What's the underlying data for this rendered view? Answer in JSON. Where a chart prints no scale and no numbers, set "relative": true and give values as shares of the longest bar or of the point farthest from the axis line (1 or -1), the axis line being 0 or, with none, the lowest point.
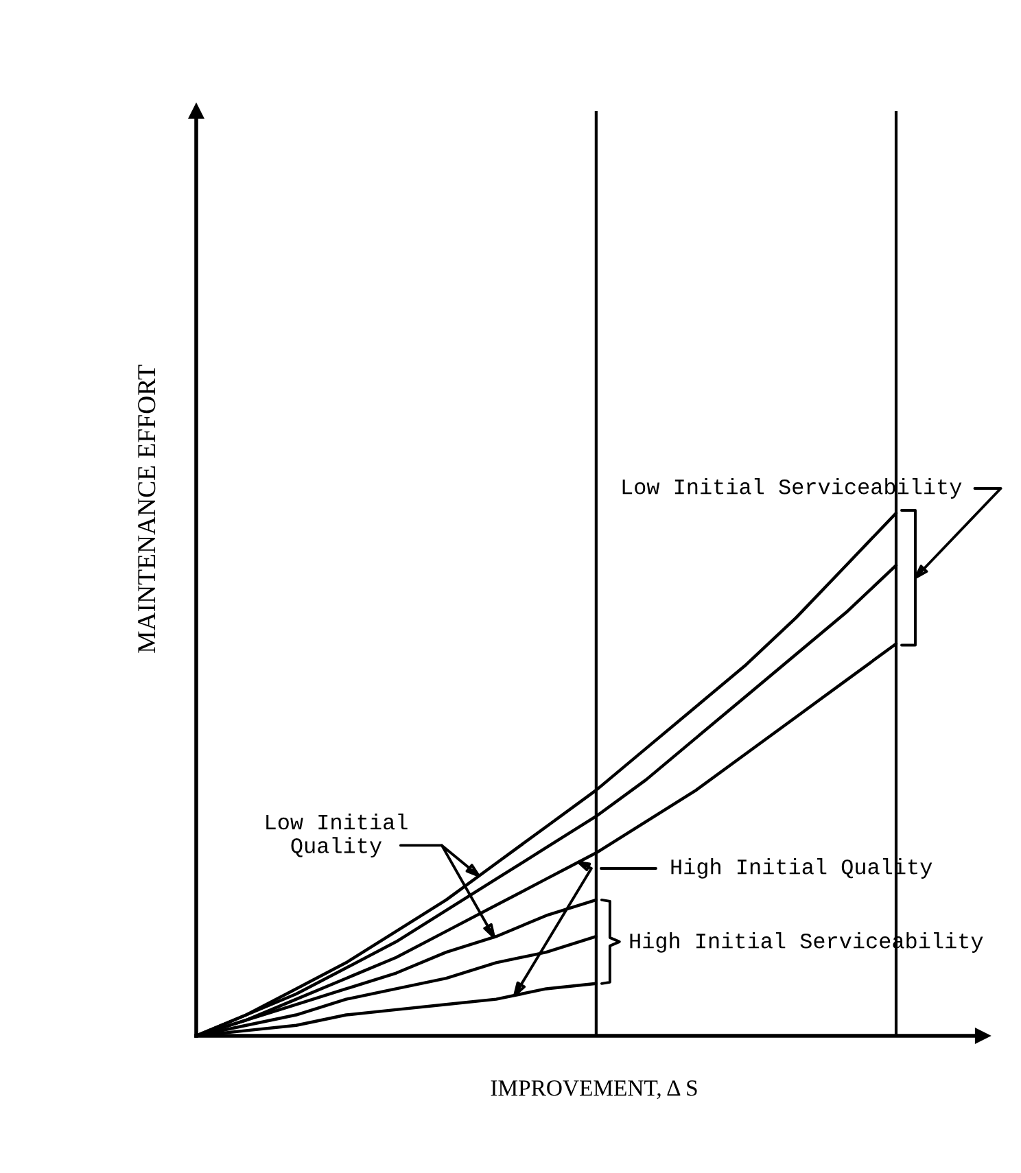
{
  "chart_data": {
    "type": "line",
    "xlabel": "IMPROVEMENT, Δ S",
    "ylabel": "MAINTENANCE EFFORT",
    "relative": true,
    "categories": [
      null,
      null,
      null,
      null,
      null,
      null,
      null,
      null,
      null,
      null,
      null,
      null,
      null,
      null,
      null
    ],
    "series": [
      {
        "color": "#000000",
        "values": [
          0,
          0.04,
          0.09,
          0.14,
          0.2,
          0.26,
          0.33,
          0.4,
          0.47,
          0.55,
          0.63,
          0.71,
          0.8,
          0.9,
          1.0
        ]
      },
      {
        "color": "#000000",
        "values": [
          0,
          0.04,
          0.08,
          0.13,
          0.18,
          0.24,
          0.3,
          0.36,
          0.42,
          0.49,
          0.57,
          0.65,
          0.73,
          0.81,
          0.9
        ]
      },
      {
        "color": "#000000",
        "values": [
          0,
          0.03,
          0.07,
          0.11,
          0.15,
          0.2,
          0.25,
          0.3,
          0.35,
          0.41,
          0.47,
          0.54,
          0.61,
          0.68,
          0.75
        ]
      },
      {
        "color": "#000000",
        "values": [
          0,
          0.03,
          0.06,
          0.09,
          0.12,
          0.16,
          0.19,
          0.23,
          0.26,
          null,
          null,
          null,
          null,
          null,
          null
        ]
      },
      {
        "color": "#000000",
        "values": [
          0,
          0.02,
          0.04,
          0.07,
          0.09,
          0.11,
          0.14,
          0.16,
          0.19,
          null,
          null,
          null,
          null,
          null,
          null
        ]
      },
      {
        "color": "#000000",
        "values": [
          0,
          0.01,
          0.02,
          0.04,
          0.05,
          0.06,
          0.07,
          0.09,
          0.1,
          null,
          null,
          null,
          null,
          null,
          null
        ]
      }
    ],
    "annotations": [
      "Low Initial Serviceability",
      "Low Initial\nQuality",
      "High Initial Quality",
      "High Initial Serviceability"
    ]
  }
}
